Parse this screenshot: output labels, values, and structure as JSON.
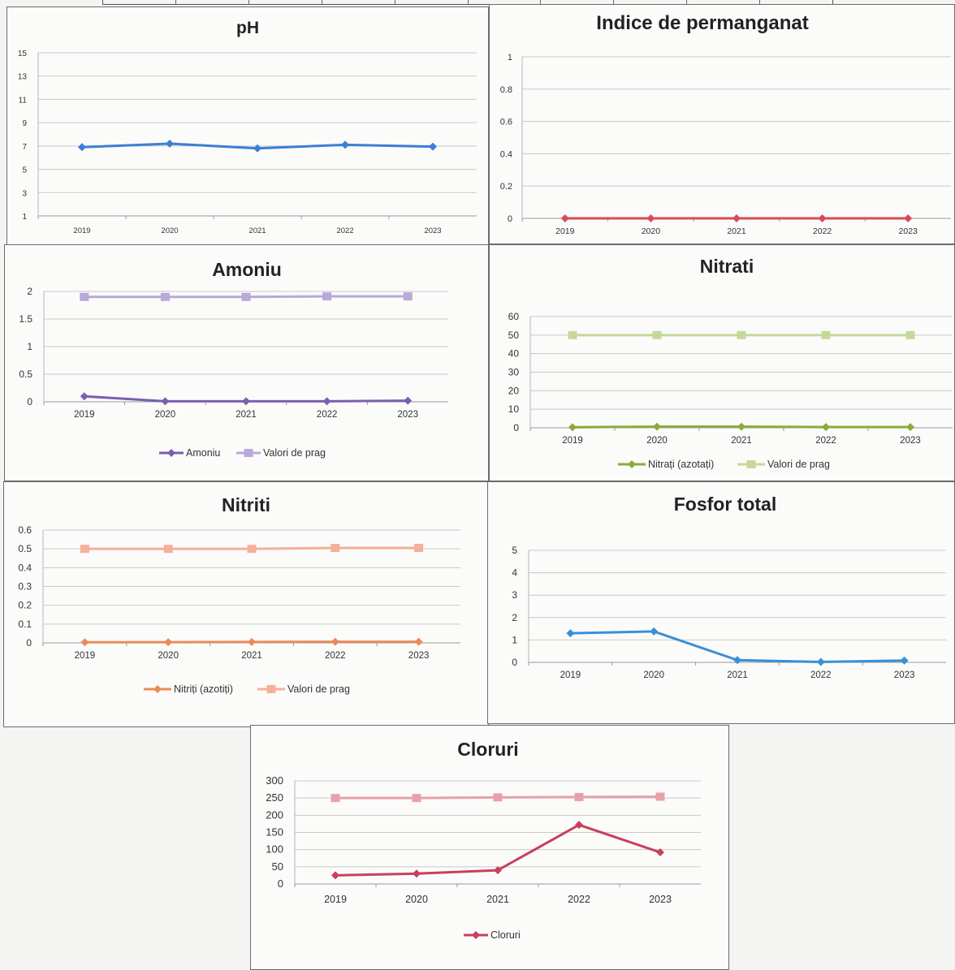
{
  "chart_data": [
    {
      "id": "ph",
      "type": "line",
      "title": "pH",
      "categories": [
        "2019",
        "2020",
        "2021",
        "2022",
        "2023"
      ],
      "yticks": [
        "1",
        "3",
        "5",
        "7",
        "9",
        "11",
        "13",
        "15"
      ],
      "ylim": [
        1,
        15
      ],
      "series": [
        {
          "values": [
            6.9,
            7.2,
            6.8,
            7.1,
            6.95
          ],
          "color": "#3a7fd5",
          "marker": "diamond"
        }
      ]
    },
    {
      "id": "permanganat",
      "type": "line",
      "title": "Indice de permanganat",
      "categories": [
        "2019",
        "2020",
        "2021",
        "2022",
        "2023"
      ],
      "yticks": [
        "0",
        "0.2",
        "0.4",
        "0.6",
        "0.8",
        "1"
      ],
      "ylim": [
        0,
        1
      ],
      "series": [
        {
          "values": [
            0,
            0,
            0,
            0,
            0
          ],
          "color": "#d94a5a",
          "marker": "diamond"
        }
      ]
    },
    {
      "id": "amoniu",
      "type": "line",
      "title": "Amoniu",
      "categories": [
        "2019",
        "2020",
        "2021",
        "2022",
        "2023"
      ],
      "yticks": [
        "0",
        "0.5",
        "1",
        "1.5",
        "2"
      ],
      "ylim": [
        0,
        2
      ],
      "series": [
        {
          "name": "Amoniu",
          "values": [
            0.1,
            0.01,
            0.01,
            0.01,
            0.02
          ],
          "color": "#7a5fb0",
          "marker": "diamond"
        },
        {
          "name": "Valori de prag",
          "values": [
            1.9,
            1.9,
            1.9,
            1.91,
            1.91
          ],
          "color": "#b7a9d8",
          "marker": "square"
        }
      ]
    },
    {
      "id": "nitrati",
      "type": "line",
      "title": "Nitrati",
      "categories": [
        "2019",
        "2020",
        "2021",
        "2022",
        "2023"
      ],
      "yticks": [
        "0",
        "10",
        "20",
        "30",
        "40",
        "50",
        "60"
      ],
      "ylim": [
        0,
        60
      ],
      "series": [
        {
          "name": "Nitrați (azotați)",
          "values": [
            0.3,
            0.6,
            0.6,
            0.4,
            0.4
          ],
          "color": "#8aaa3c",
          "marker": "diamond"
        },
        {
          "name": "Valori de prag",
          "values": [
            50,
            50,
            50,
            50,
            50
          ],
          "color": "#c4d89a",
          "marker": "square"
        }
      ]
    },
    {
      "id": "nitriti",
      "type": "line",
      "title": "Nitriti",
      "categories": [
        "2019",
        "2020",
        "2021",
        "2022",
        "2023"
      ],
      "yticks": [
        "0",
        "0.1",
        "0.2",
        "0.3",
        "0.4",
        "0.5",
        "0.6"
      ],
      "ylim": [
        0,
        0.6
      ],
      "series": [
        {
          "name": "Nitriți (azotiți)",
          "values": [
            0.003,
            0.004,
            0.005,
            0.006,
            0.006
          ],
          "color": "#ec8a5a",
          "marker": "diamond"
        },
        {
          "name": "Valori de prag",
          "values": [
            0.5,
            0.5,
            0.5,
            0.505,
            0.505
          ],
          "color": "#f4b09a",
          "marker": "square"
        }
      ]
    },
    {
      "id": "fosfor",
      "type": "line",
      "title": "Fosfor total",
      "categories": [
        "2019",
        "2020",
        "2021",
        "2022",
        "2023"
      ],
      "yticks": [
        "0",
        "1",
        "2",
        "3",
        "4",
        "5"
      ],
      "ylim": [
        0,
        5
      ],
      "series": [
        {
          "values": [
            1.3,
            1.38,
            0.1,
            0.02,
            0.08
          ],
          "color": "#3a8fd8",
          "marker": "diamond"
        }
      ]
    },
    {
      "id": "cloruri",
      "type": "line",
      "title": "Cloruri",
      "categories": [
        "2019",
        "2020",
        "2021",
        "2022",
        "2023"
      ],
      "yticks": [
        "0",
        "50",
        "100",
        "150",
        "200",
        "250",
        "300"
      ],
      "ylim": [
        0,
        300
      ],
      "series": [
        {
          "name": "Cloruri",
          "values": [
            25,
            30,
            40,
            172,
            92
          ],
          "color": "#c8405a",
          "marker": "diamond"
        },
        {
          "values": [
            250,
            250,
            252,
            253,
            254
          ],
          "color": "#e8a0aa",
          "marker": "square"
        }
      ]
    }
  ]
}
